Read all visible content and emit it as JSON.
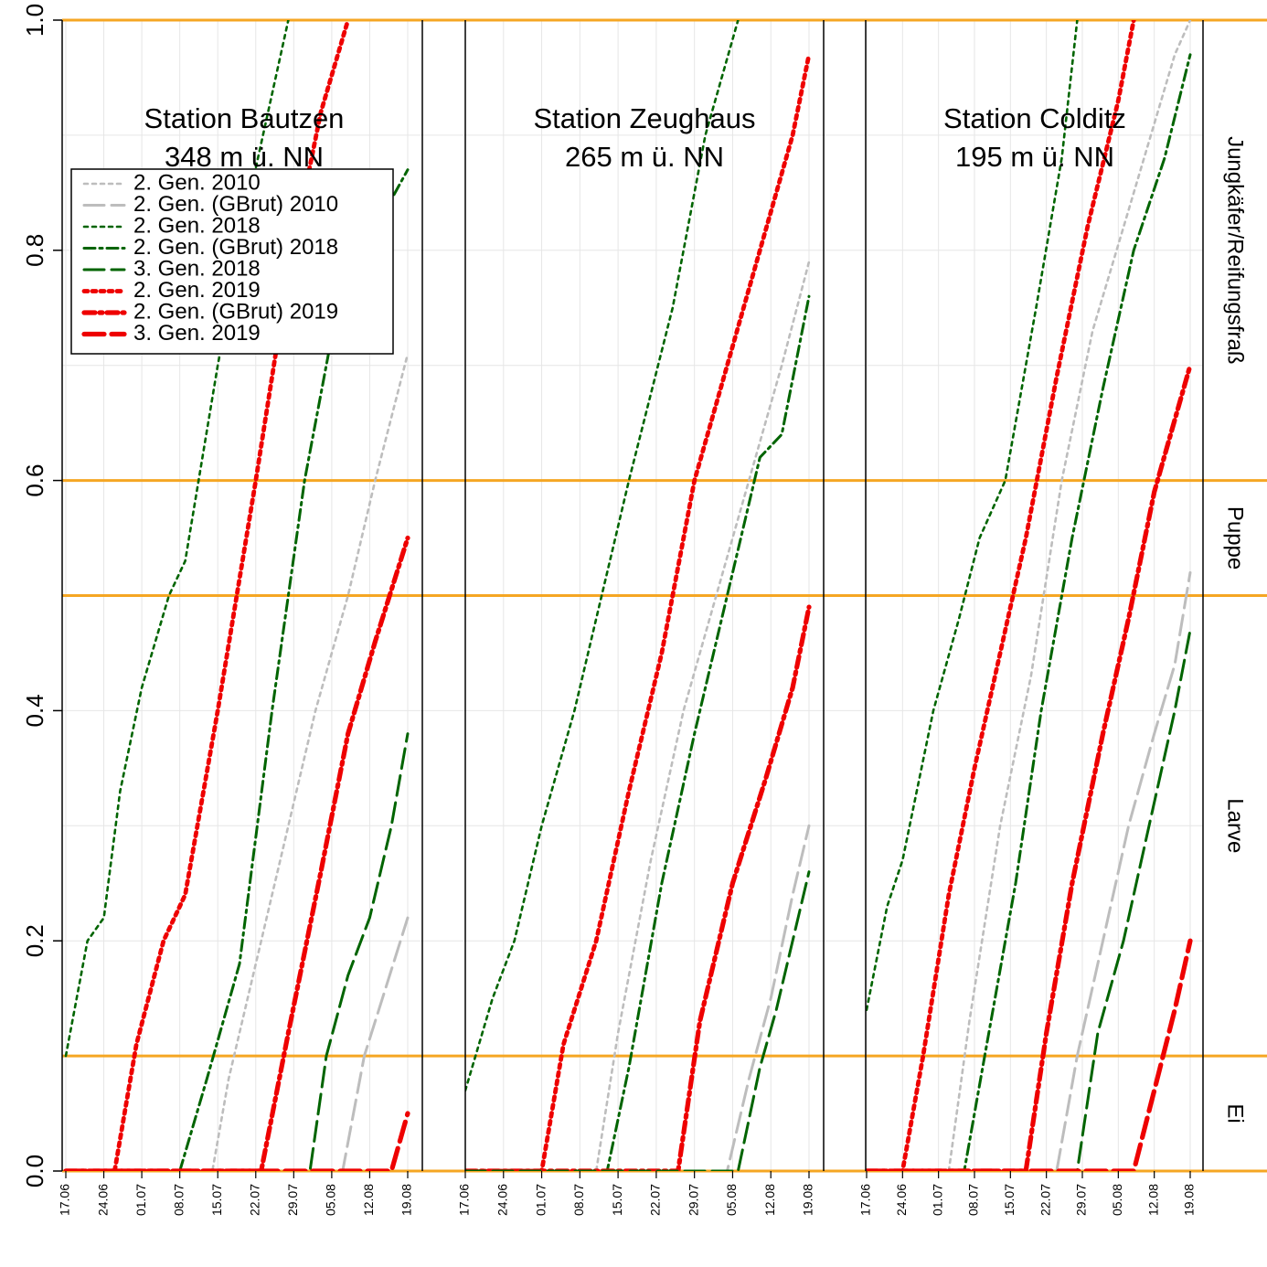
{
  "chart_data": {
    "type": "line",
    "y_range": [
      0,
      1
    ],
    "y_ticks": [
      "0.0",
      "0.2",
      "0.4",
      "0.6",
      "0.8",
      "1.0"
    ],
    "x_ticks": [
      "17.06",
      "24.06",
      "01.07",
      "08.07",
      "15.07",
      "22.07",
      "29.07",
      "05.08",
      "12.08",
      "19.08"
    ],
    "x_range_days": [
      0,
      63
    ],
    "stage_thresholds": [
      0,
      0.1,
      0.5,
      0.6,
      1.0
    ],
    "stage_labels": [
      {
        "label": "Ei",
        "y": 0.05
      },
      {
        "label": "Larve",
        "y": 0.3
      },
      {
        "label": "Puppe",
        "y": 0.55
      },
      {
        "label": "Jungkäfer/Reifungsfraß",
        "y": 0.8
      }
    ],
    "legend": [
      {
        "label": "2. Gen. 2010",
        "color": "#bdbdbd",
        "style": "dot"
      },
      {
        "label": "2. Gen. (GBrut) 2010",
        "color": "#bdbdbd",
        "style": "longdash"
      },
      {
        "label": "2. Gen. 2018",
        "color": "#006400",
        "style": "dot"
      },
      {
        "label": "2. Gen. (GBrut) 2018",
        "color": "#006400",
        "style": "dashdot"
      },
      {
        "label": "3. Gen. 2018",
        "color": "#006400",
        "style": "longdash"
      },
      {
        "label": "2. Gen. 2019",
        "color": "#ee0000",
        "style": "dot"
      },
      {
        "label": "2. Gen. (GBrut) 2019",
        "color": "#ee0000",
        "style": "dashdot"
      },
      {
        "label": "3. Gen. 2019",
        "color": "#ee0000",
        "style": "longdash"
      }
    ],
    "panels": [
      {
        "title": "Station Bautzen",
        "subtitle": "348 m ü. NN",
        "series": [
          {
            "name": "2. Gen. 2018",
            "points": [
              [
                0,
                0.1
              ],
              [
                4,
                0.2
              ],
              [
                7,
                0.22
              ],
              [
                10,
                0.33
              ],
              [
                14,
                0.42
              ],
              [
                19,
                0.5
              ],
              [
                22,
                0.53
              ],
              [
                28,
                0.7
              ],
              [
                34,
                0.85
              ],
              [
                41,
                1.0
              ]
            ]
          },
          {
            "name": "2. Gen. 2019",
            "points": [
              [
                0,
                0.0
              ],
              [
                9,
                0.0
              ],
              [
                13,
                0.11
              ],
              [
                18,
                0.2
              ],
              [
                22,
                0.24
              ],
              [
                28,
                0.4
              ],
              [
                35,
                0.6
              ],
              [
                41,
                0.78
              ],
              [
                47,
                0.92
              ],
              [
                52,
                1.0
              ]
            ]
          },
          {
            "name": "2. Gen. (GBrut) 2018",
            "points": [
              [
                0,
                0.0
              ],
              [
                21,
                0.0
              ],
              [
                26,
                0.08
              ],
              [
                32,
                0.18
              ],
              [
                38,
                0.4
              ],
              [
                44,
                0.6
              ],
              [
                50,
                0.75
              ],
              [
                56,
                0.81
              ],
              [
                63,
                0.87
              ]
            ]
          },
          {
            "name": "2. Gen. 2010",
            "points": [
              [
                0,
                0.0
              ],
              [
                27,
                0.0
              ],
              [
                30,
                0.08
              ],
              [
                35,
                0.18
              ],
              [
                40,
                0.28
              ],
              [
                46,
                0.4
              ],
              [
                52,
                0.5
              ],
              [
                57,
                0.6
              ],
              [
                63,
                0.71
              ]
            ]
          },
          {
            "name": "2. Gen. (GBrut) 2019",
            "points": [
              [
                0,
                0.0
              ],
              [
                36,
                0.0
              ],
              [
                41,
                0.12
              ],
              [
                47,
                0.26
              ],
              [
                52,
                0.38
              ],
              [
                57,
                0.46
              ],
              [
                63,
                0.55
              ]
            ]
          },
          {
            "name": "3. Gen. 2018",
            "points": [
              [
                0,
                0.0
              ],
              [
                45,
                0.0
              ],
              [
                48,
                0.1
              ],
              [
                52,
                0.17
              ],
              [
                56,
                0.22
              ],
              [
                60,
                0.3
              ],
              [
                63,
                0.38
              ]
            ]
          },
          {
            "name": "(GBrut) 2010",
            "points": [
              [
                0,
                0.0
              ],
              [
                51,
                0.0
              ],
              [
                55,
                0.1
              ],
              [
                59,
                0.16
              ],
              [
                63,
                0.22
              ]
            ]
          },
          {
            "name": "3. Gen. 2019",
            "points": [
              [
                0,
                0.0
              ],
              [
                60,
                0.0
              ],
              [
                63,
                0.05
              ]
            ]
          }
        ]
      },
      {
        "title": "Station Zeughaus",
        "subtitle": "265 m ü. NN",
        "series": [
          {
            "name": "2. Gen. 2018",
            "points": [
              [
                0,
                0.07
              ],
              [
                5,
                0.15
              ],
              [
                9,
                0.2
              ],
              [
                14,
                0.3
              ],
              [
                20,
                0.4
              ],
              [
                25,
                0.5
              ],
              [
                30,
                0.6
              ],
              [
                38,
                0.75
              ],
              [
                44,
                0.9
              ],
              [
                50,
                1.0
              ]
            ]
          },
          {
            "name": "2. Gen. 2019",
            "points": [
              [
                0,
                0.0
              ],
              [
                14,
                0.0
              ],
              [
                18,
                0.11
              ],
              [
                24,
                0.2
              ],
              [
                30,
                0.33
              ],
              [
                36,
                0.45
              ],
              [
                42,
                0.6
              ],
              [
                48,
                0.7
              ],
              [
                54,
                0.8
              ],
              [
                60,
                0.9
              ],
              [
                63,
                0.97
              ]
            ]
          },
          {
            "name": "2. Gen. 2010",
            "points": [
              [
                0,
                0.0
              ],
              [
                24,
                0.0
              ],
              [
                28,
                0.12
              ],
              [
                34,
                0.27
              ],
              [
                40,
                0.4
              ],
              [
                46,
                0.5
              ],
              [
                52,
                0.6
              ],
              [
                58,
                0.7
              ],
              [
                63,
                0.79
              ]
            ]
          },
          {
            "name": "2. Gen. (GBrut) 2018",
            "points": [
              [
                0,
                0.0
              ],
              [
                26,
                0.0
              ],
              [
                30,
                0.09
              ],
              [
                36,
                0.25
              ],
              [
                42,
                0.38
              ],
              [
                48,
                0.5
              ],
              [
                54,
                0.62
              ],
              [
                58,
                0.64
              ],
              [
                63,
                0.76
              ]
            ]
          },
          {
            "name": "2. Gen. (GBrut) 2019",
            "points": [
              [
                0,
                0.0
              ],
              [
                39,
                0.0
              ],
              [
                43,
                0.13
              ],
              [
                49,
                0.25
              ],
              [
                55,
                0.34
              ],
              [
                60,
                0.42
              ],
              [
                63,
                0.49
              ]
            ]
          },
          {
            "name": "(GBrut) 2010",
            "points": [
              [
                0,
                0.0
              ],
              [
                48,
                0.0
              ],
              [
                52,
                0.08
              ],
              [
                56,
                0.15
              ],
              [
                60,
                0.24
              ],
              [
                63,
                0.3
              ]
            ]
          },
          {
            "name": "3. Gen. 2018",
            "points": [
              [
                0,
                0.0
              ],
              [
                50,
                0.0
              ],
              [
                54,
                0.09
              ],
              [
                57,
                0.14
              ],
              [
                60,
                0.2
              ],
              [
                63,
                0.26
              ]
            ]
          }
        ]
      },
      {
        "title": "Station Colditz",
        "subtitle": "195 m ü. NN",
        "series": [
          {
            "name": "2. Gen. 2018",
            "points": [
              [
                0,
                0.14
              ],
              [
                4,
                0.23
              ],
              [
                7,
                0.27
              ],
              [
                13,
                0.4
              ],
              [
                18,
                0.48
              ],
              [
                22,
                0.55
              ],
              [
                27,
                0.6
              ],
              [
                33,
                0.75
              ],
              [
                38,
                0.88
              ],
              [
                41,
                1.0
              ]
            ]
          },
          {
            "name": "2. Gen. 2019",
            "points": [
              [
                0,
                0.0
              ],
              [
                7,
                0.0
              ],
              [
                11,
                0.1
              ],
              [
                16,
                0.24
              ],
              [
                21,
                0.35
              ],
              [
                26,
                0.45
              ],
              [
                31,
                0.55
              ],
              [
                37,
                0.69
              ],
              [
                43,
                0.82
              ],
              [
                49,
                0.93
              ],
              [
                52,
                1.0
              ]
            ]
          },
          {
            "name": "2. Gen. 2010",
            "points": [
              [
                0,
                0.0
              ],
              [
                16,
                0.0
              ],
              [
                20,
                0.13
              ],
              [
                26,
                0.3
              ],
              [
                32,
                0.43
              ],
              [
                38,
                0.6
              ],
              [
                44,
                0.73
              ],
              [
                50,
                0.82
              ],
              [
                56,
                0.91
              ],
              [
                60,
                0.97
              ],
              [
                63,
                1.0
              ]
            ]
          },
          {
            "name": "2. Gen. (GBrut) 2018",
            "points": [
              [
                0,
                0.0
              ],
              [
                19,
                0.0
              ],
              [
                23,
                0.1
              ],
              [
                29,
                0.25
              ],
              [
                34,
                0.4
              ],
              [
                40,
                0.55
              ],
              [
                46,
                0.68
              ],
              [
                52,
                0.8
              ],
              [
                58,
                0.88
              ],
              [
                63,
                0.97
              ]
            ]
          },
          {
            "name": "2. Gen. (GBrut) 2019",
            "points": [
              [
                0,
                0.0
              ],
              [
                31,
                0.0
              ],
              [
                35,
                0.12
              ],
              [
                40,
                0.25
              ],
              [
                46,
                0.38
              ],
              [
                51,
                0.48
              ],
              [
                56,
                0.59
              ],
              [
                63,
                0.7
              ]
            ]
          },
          {
            "name": "(GBrut) 2010",
            "points": [
              [
                0,
                0.0
              ],
              [
                37,
                0.0
              ],
              [
                41,
                0.1
              ],
              [
                46,
                0.2
              ],
              [
                51,
                0.3
              ],
              [
                56,
                0.38
              ],
              [
                60,
                0.44
              ],
              [
                63,
                0.52
              ]
            ]
          },
          {
            "name": "3. Gen. 2018",
            "points": [
              [
                0,
                0.0
              ],
              [
                41,
                0.0
              ],
              [
                45,
                0.12
              ],
              [
                50,
                0.2
              ],
              [
                55,
                0.3
              ],
              [
                60,
                0.4
              ],
              [
                63,
                0.47
              ]
            ]
          },
          {
            "name": "3. Gen. 2019",
            "points": [
              [
                0,
                0.0
              ],
              [
                52,
                0.0
              ],
              [
                56,
                0.07
              ],
              [
                60,
                0.14
              ],
              [
                63,
                0.2
              ]
            ]
          }
        ]
      }
    ]
  }
}
